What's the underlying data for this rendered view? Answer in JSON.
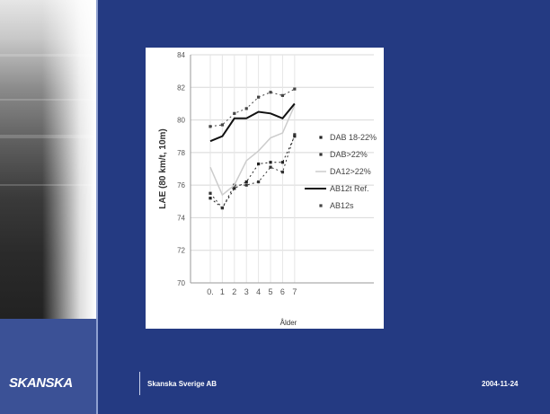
{
  "footer": {
    "logo": "SKANSKA",
    "company": "Skanska Sverige AB",
    "date": "2004-11-24"
  },
  "colors": {
    "background": "#243a82",
    "left_band": "#3b5196",
    "chart_background": "#ffffff"
  },
  "chart_data": {
    "type": "line",
    "xlabel": "Ålder",
    "ylabel": "LAE  (80  km/t,  10m)",
    "x": [
      0,
      1,
      2,
      3,
      4,
      5,
      6,
      7
    ],
    "ylim": [
      70,
      84
    ],
    "yticks": [
      70,
      72,
      74,
      76,
      78,
      80,
      82,
      84
    ],
    "grid": true,
    "legend_position": "right",
    "series": [
      {
        "name": "DAB 18-22%",
        "color": "#222222",
        "style": "dotted-markers",
        "values": [
          75.2,
          74.6,
          75.8,
          76.2,
          77.3,
          77.4,
          77.4,
          79.0
        ]
      },
      {
        "name": "DAB>22%",
        "color": "#333333",
        "style": "dotted-markers",
        "values": [
          75.5,
          74.6,
          76.0,
          76.0,
          76.2,
          77.1,
          76.8,
          79.1
        ]
      },
      {
        "name": "DA12>22%",
        "color": "#cccccc",
        "style": "light-line",
        "values": [
          77.1,
          75.4,
          76.0,
          77.5,
          78.1,
          78.9,
          79.2,
          80.9
        ]
      },
      {
        "name": "AB12t Ref.",
        "color": "#111111",
        "style": "solid",
        "values": [
          78.7,
          79.0,
          80.1,
          80.1,
          80.5,
          80.4,
          80.1,
          81.0
        ]
      },
      {
        "name": "AB12s",
        "color": "#444444",
        "style": "dotted-markers",
        "values": [
          79.6,
          79.7,
          80.4,
          80.7,
          81.4,
          81.7,
          81.5,
          81.9
        ]
      }
    ]
  }
}
